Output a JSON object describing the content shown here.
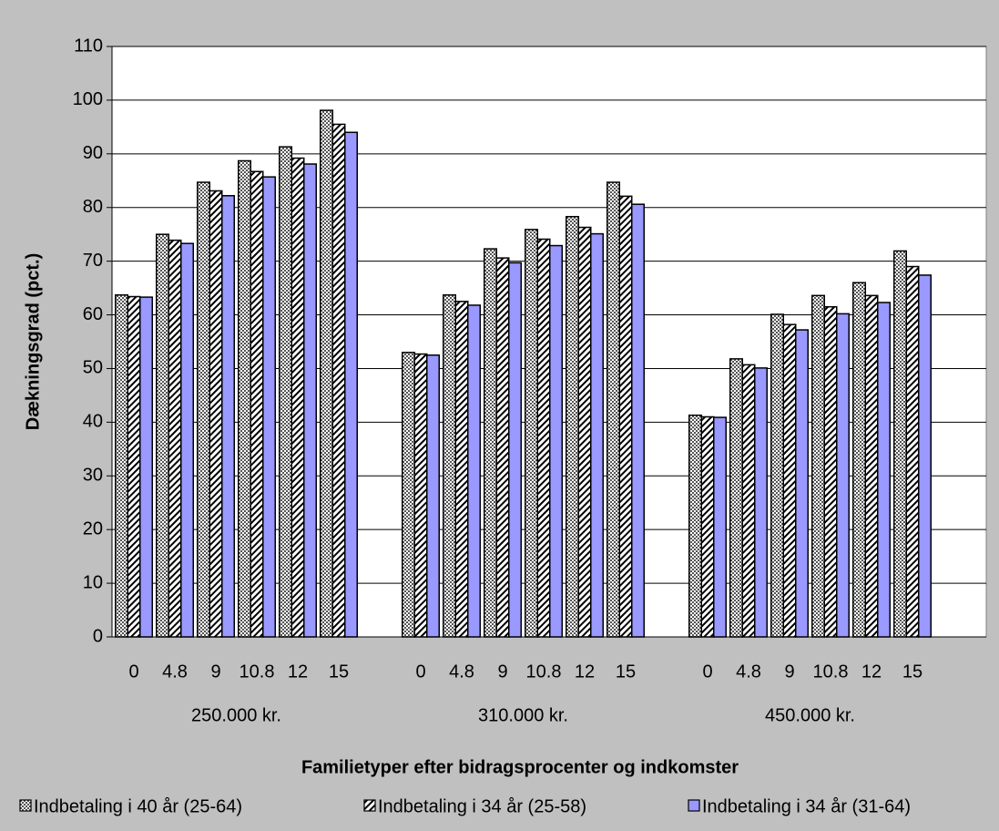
{
  "chart_data": {
    "type": "bar",
    "y_label": "Dækningsgrad (pct.)",
    "x_label": "Familietyper efter bidragsprocenter og indkomster",
    "categories": [
      "0",
      "4.8",
      "9",
      "10.8",
      "12",
      "15",
      null,
      "0",
      "4.8",
      "9",
      "10.8",
      "12",
      "15",
      null,
      "0",
      "4.8",
      "9",
      "10.8",
      "12",
      "15"
    ],
    "groups": [
      "250.000 kr.",
      "310.000 kr.",
      "450.000 kr."
    ],
    "series": [
      {
        "name": "Indbetaling i 40 år (25-64)",
        "color": "#808080",
        "pattern": "crosshatch",
        "values": [
          63.7,
          75,
          84.7,
          88.7,
          91.3,
          98.1,
          null,
          53,
          63.7,
          72.3,
          75.9,
          78.3,
          84.7,
          null,
          41.3,
          51.8,
          60.1,
          63.6,
          66,
          71.9
        ]
      },
      {
        "name": "Indbetaling i 34 år (25-58)",
        "color": "#000000",
        "pattern": "diagonal",
        "values": [
          63.4,
          73.9,
          83.1,
          86.7,
          89.2,
          95.5,
          null,
          52.7,
          62.5,
          70.6,
          74.1,
          76.3,
          82.1,
          null,
          41,
          50.7,
          58.2,
          61.5,
          63.6,
          69
        ]
      },
      {
        "name": "Indbetaling i 34 år (31-64)",
        "color": "#9999ff",
        "pattern": null,
        "values": [
          63.3,
          73.3,
          82.2,
          85.7,
          88.1,
          94,
          null,
          52.5,
          61.8,
          69.7,
          72.9,
          75.1,
          80.6,
          null,
          40.9,
          50.1,
          57.2,
          60.2,
          62.3,
          67.4
        ]
      }
    ],
    "ylim": [
      0,
      110
    ],
    "yticks": [
      0,
      10,
      20,
      30,
      40,
      50,
      60,
      70,
      80,
      90,
      100,
      110
    ],
    "grid": true
  }
}
